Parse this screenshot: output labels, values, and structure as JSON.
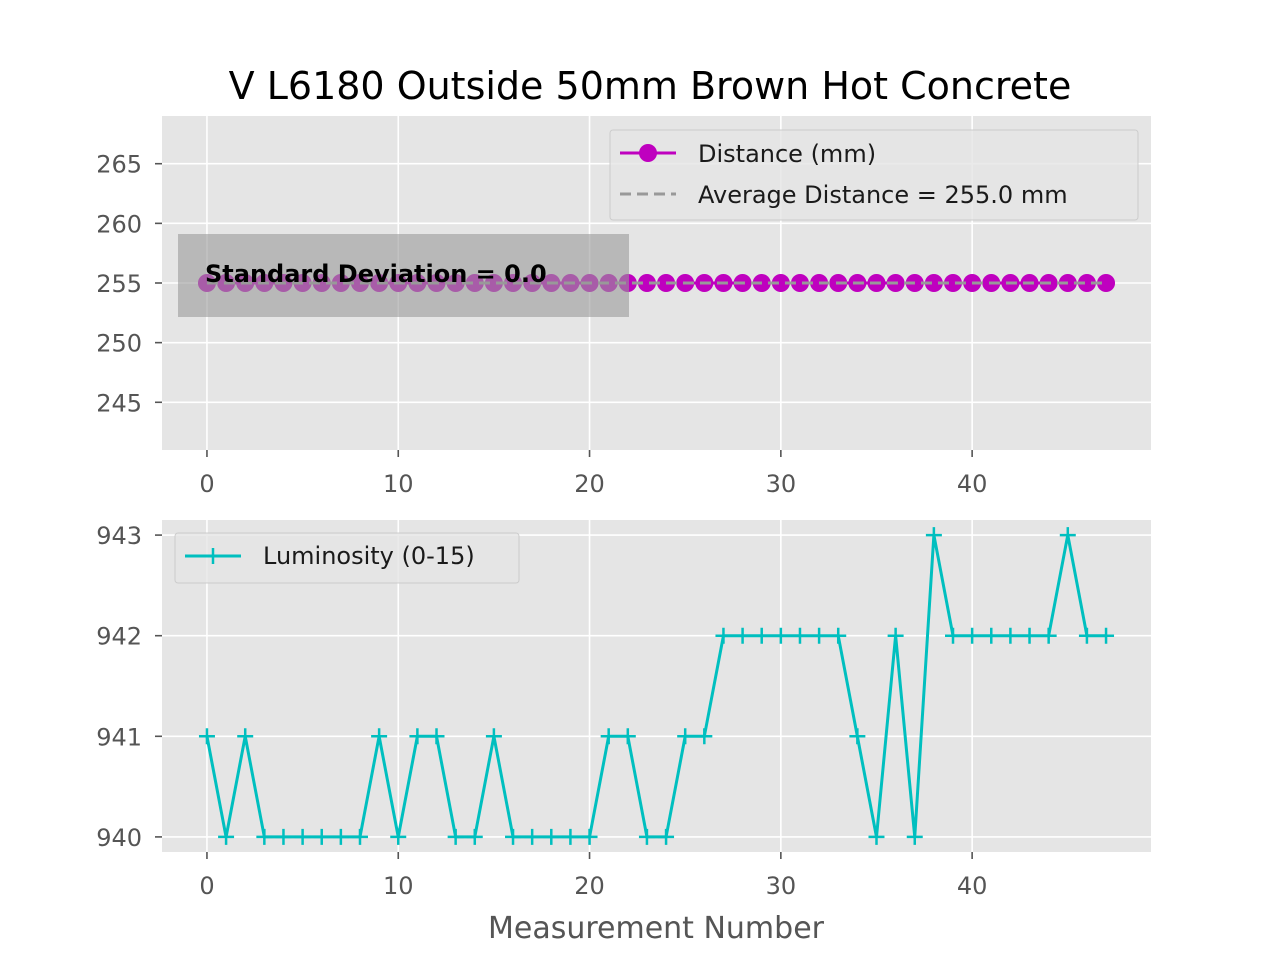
{
  "chart_data": [
    {
      "type": "line",
      "title": "V L6180 Outside 50mm Brown Hot Concrete",
      "xlabel": "",
      "ylabel": "",
      "xlim": [
        -2.35,
        49.35
      ],
      "ylim": [
        241,
        269
      ],
      "xticks": [
        0,
        10,
        20,
        30,
        40
      ],
      "yticks": [
        245,
        250,
        255,
        260,
        265
      ],
      "grid": true,
      "legend_position": "top-right",
      "series": [
        {
          "name": "Distance (mm)",
          "color": "#bf00bf",
          "marker": "circle",
          "x": [
            0,
            1,
            2,
            3,
            4,
            5,
            6,
            7,
            8,
            9,
            10,
            11,
            12,
            13,
            14,
            15,
            16,
            17,
            18,
            19,
            20,
            21,
            22,
            23,
            24,
            25,
            26,
            27,
            28,
            29,
            30,
            31,
            32,
            33,
            34,
            35,
            36,
            37,
            38,
            39,
            40,
            41,
            42,
            43,
            44,
            45,
            46,
            47
          ],
          "y": [
            255,
            255,
            255,
            255,
            255,
            255,
            255,
            255,
            255,
            255,
            255,
            255,
            255,
            255,
            255,
            255,
            255,
            255,
            255,
            255,
            255,
            255,
            255,
            255,
            255,
            255,
            255,
            255,
            255,
            255,
            255,
            255,
            255,
            255,
            255,
            255,
            255,
            255,
            255,
            255,
            255,
            255,
            255,
            255,
            255,
            255,
            255,
            255
          ]
        },
        {
          "name": "Average Distance = 255.0 mm",
          "color": "#999999",
          "style": "dashed",
          "y": 255.0
        }
      ],
      "annotation": {
        "text": "Standard Deviation = 0.0",
        "x": 0,
        "y": 255
      }
    },
    {
      "type": "line",
      "title": "",
      "xlabel": "Measurement Number",
      "ylabel": "",
      "xlim": [
        -2.35,
        49.35
      ],
      "ylim": [
        939.85,
        943.15
      ],
      "xticks": [
        0,
        10,
        20,
        30,
        40
      ],
      "yticks": [
        940,
        941,
        942,
        943
      ],
      "grid": true,
      "legend_position": "top-left",
      "series": [
        {
          "name": "Luminosity (0-15)",
          "color": "#00bfbf",
          "marker": "plus",
          "x": [
            0,
            1,
            2,
            3,
            4,
            5,
            6,
            7,
            8,
            9,
            10,
            11,
            12,
            13,
            14,
            15,
            16,
            17,
            18,
            19,
            20,
            21,
            22,
            23,
            24,
            25,
            26,
            27,
            28,
            29,
            30,
            31,
            32,
            33,
            34,
            35,
            36,
            37,
            38,
            39,
            40,
            41,
            42,
            43,
            44,
            45,
            46,
            47
          ],
          "y": [
            941,
            940,
            941,
            940,
            940,
            940,
            940,
            940,
            940,
            941,
            940,
            941,
            941,
            940,
            940,
            941,
            940,
            940,
            940,
            940,
            940,
            941,
            941,
            940,
            940,
            941,
            941,
            942,
            942,
            942,
            942,
            942,
            942,
            942,
            941,
            940,
            942,
            940,
            943,
            942,
            942,
            942,
            942,
            942,
            942,
            943,
            942,
            942
          ]
        }
      ]
    }
  ]
}
